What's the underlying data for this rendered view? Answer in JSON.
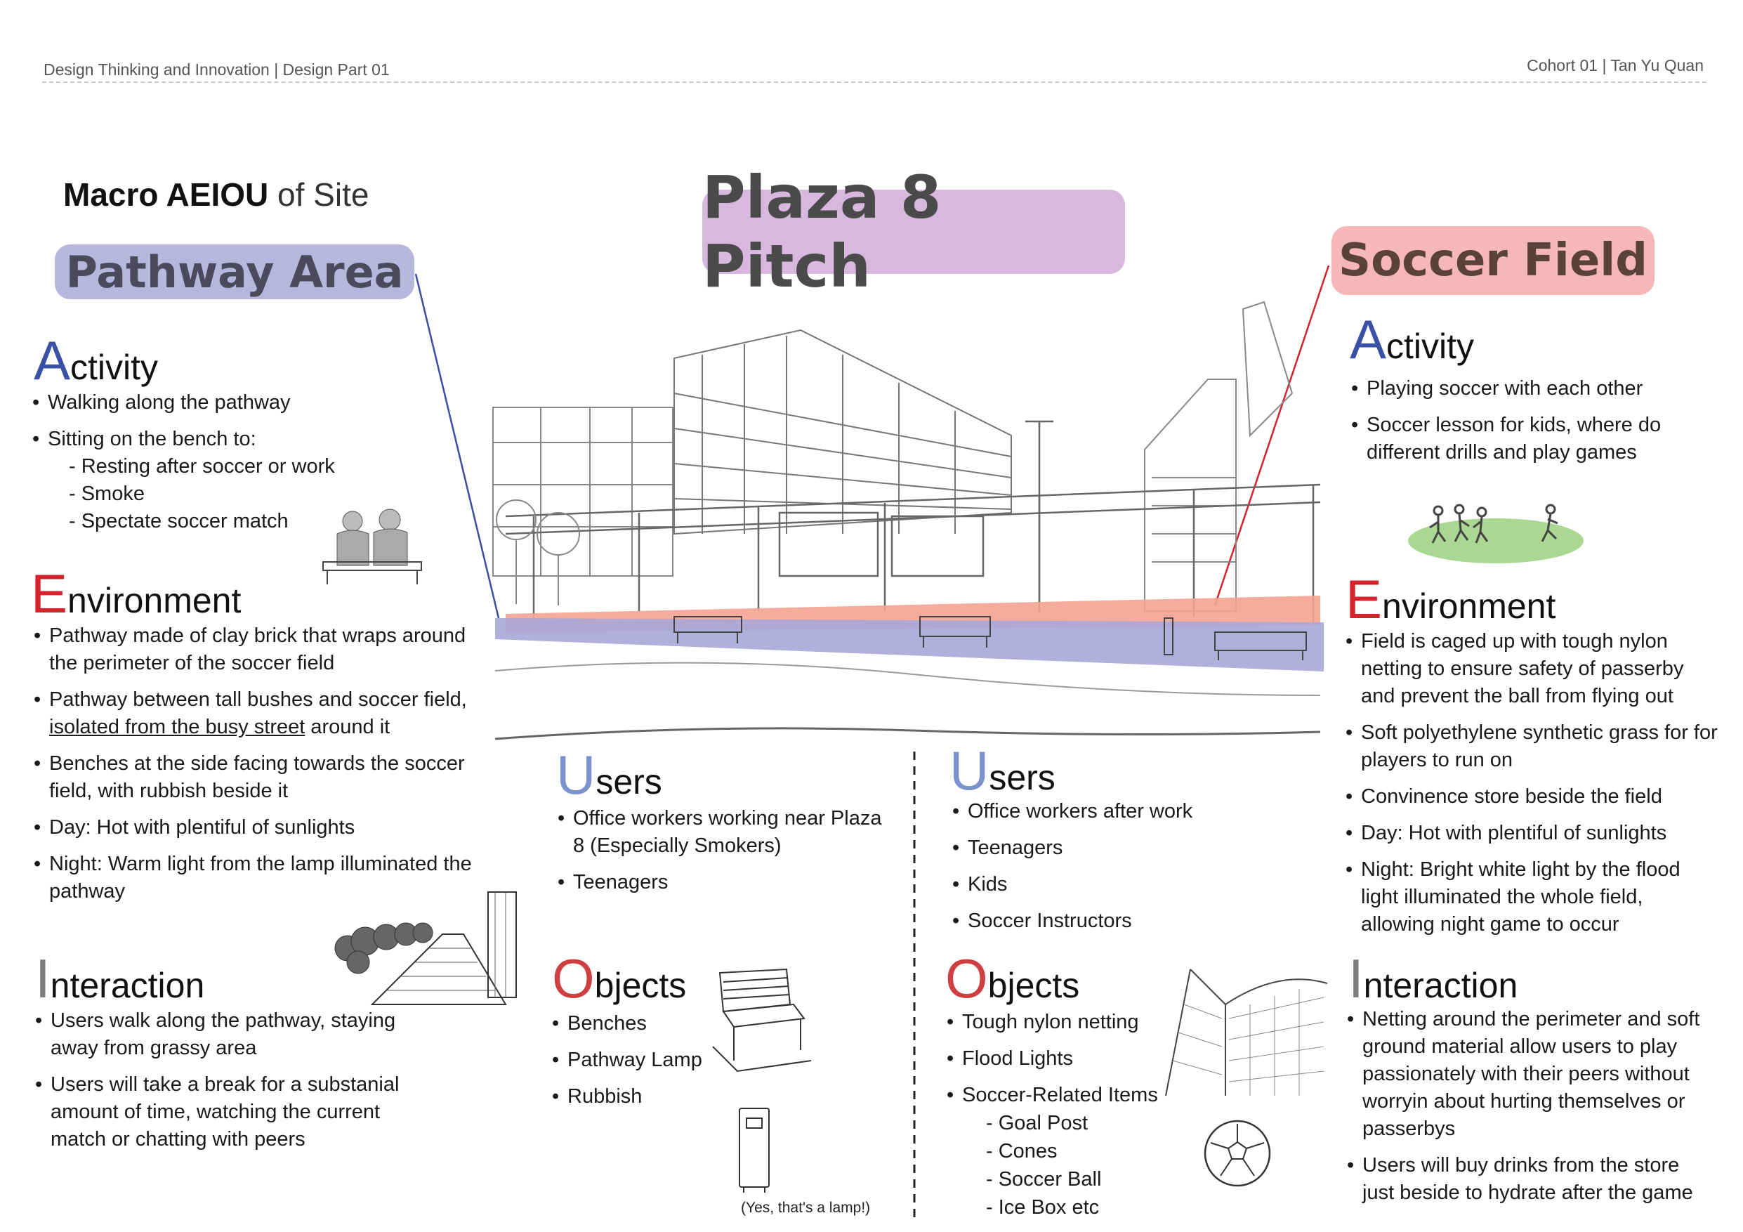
{
  "header": {
    "left": "Design Thinking and Innovation | Design Part 01",
    "right": "Cohort 01 | Tan Yu Quan"
  },
  "macro": {
    "bold": "Macro AEIOU",
    "rest": " of Site"
  },
  "title": "Plaza 8 Pitch",
  "labels": {
    "pathway": "Pathway Area",
    "soccer": "Soccer Field"
  },
  "colors": {
    "pathway_pill": "#b8b6dc",
    "title_pill": "#d8b8de",
    "soccer_pill": "#f6b7b9",
    "pathway_band": "#a9a6d8",
    "field_band": "#f4a392",
    "line_blue": "#3b4ea6",
    "line_red": "#d6232b"
  },
  "pathway": {
    "activity": {
      "initial": "A",
      "rest": "ctivity",
      "items": [
        {
          "text": "Walking along the pathway"
        },
        {
          "text": "Sitting on the bench to:",
          "subs": [
            "- Resting after soccer or work",
            "- Smoke",
            "- Spectate soccer match"
          ]
        }
      ]
    },
    "environment": {
      "initial": "E",
      "rest": "nvironment",
      "items": [
        "Pathway made of clay brick that wraps around the perimeter of the soccer  field",
        "Benches at the side facing towards the soccer field, with rubbish beside it",
        "Day: Hot with plentiful of sunlights",
        "Night: Warm light from the lamp illuminated the pathway"
      ],
      "item2": {
        "pre": "Pathway between tall bushes and soccer field, ",
        "underlined": "isolated from the busy street",
        "post": " around it"
      }
    },
    "interaction": {
      "initial": "I",
      "rest": "nteraction",
      "items": [
        "Users walk along the pathway, staying away from grassy area",
        "Users will take a break for a substanial amount of time, watching the current match or chatting with peers"
      ]
    },
    "users": {
      "initial": "U",
      "rest": "sers",
      "items": [
        "Office workers working near Plaza 8 (Especially Smokers)",
        "Teenagers"
      ]
    },
    "objects": {
      "initial": "O",
      "rest": "bjects",
      "items": [
        "Benches",
        "Pathway Lamp",
        "Rubbish"
      ]
    },
    "lamp_caption": "(Yes, that's a lamp!)"
  },
  "soccer": {
    "activity": {
      "initial": "A",
      "rest": "ctivity",
      "items": [
        "Playing soccer with each other",
        "Soccer lesson for kids, where do different drills and play games"
      ]
    },
    "environment": {
      "initial": "E",
      "rest": "nvironment",
      "items": [
        "Field is caged up with tough nylon netting to ensure safety of passerby and prevent the ball from flying out",
        "Soft polyethylene synthetic grass for for players to run on",
        "Convinence store beside the field",
        "Day: Hot with plentiful of sunlights",
        "Night: Bright white light by the flood light illuminated the whole field, allowing night game to occur"
      ]
    },
    "interaction": {
      "initial": "I",
      "rest": "nteraction",
      "items": [
        "Netting around the perimeter and soft ground material allow users to play passionately with their peers without worryin about hurting themselves or passerbys",
        "Users will buy drinks from the store just beside to hydrate after the game"
      ]
    },
    "users": {
      "initial": "U",
      "rest": "sers",
      "items": [
        "Office workers after work",
        "Teenagers",
        "Kids",
        "Soccer Instructors"
      ]
    },
    "objects": {
      "initial": "O",
      "rest": "bjects",
      "items": [
        {
          "text": "Tough nylon netting"
        },
        {
          "text": "Flood Lights"
        },
        {
          "text": "Soccer-Related Items",
          "subs": [
            "- Goal Post",
            "- Cones",
            "- Soccer Ball",
            "- Ice Box etc"
          ]
        }
      ]
    }
  }
}
